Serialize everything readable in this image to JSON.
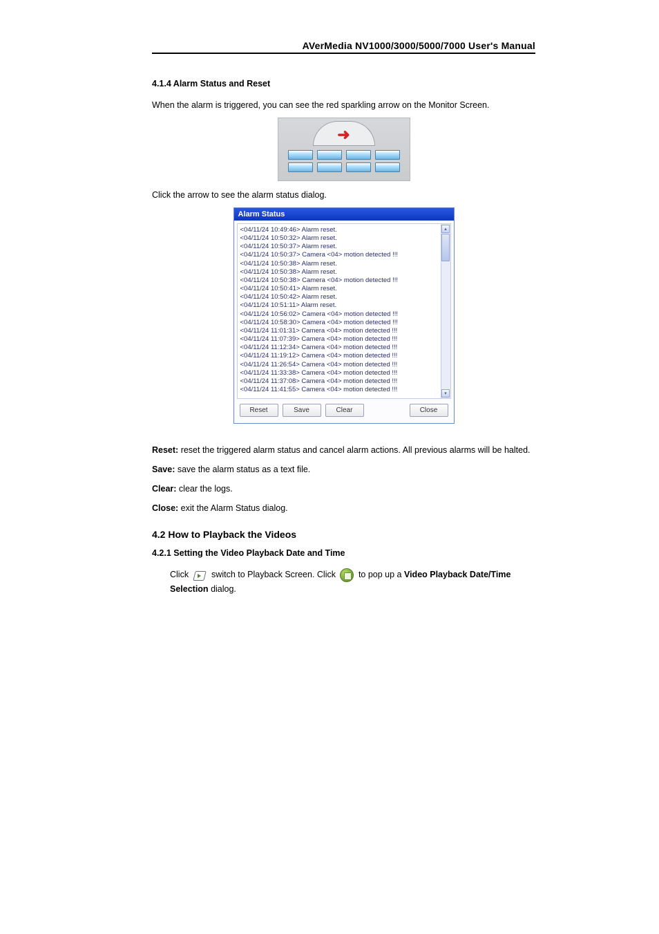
{
  "header": {
    "title": "AVerMedia NV1000/3000/5000/7000 User's Manual"
  },
  "section_414": {
    "heading": "4.1.4    Alarm Status and Reset",
    "intro": "When the alarm is triggered, you can see the red sparkling arrow on the Monitor Screen.",
    "click_arrow": "Click the arrow to see the alarm status dialog."
  },
  "dialog": {
    "title": "Alarm Status",
    "log_lines": [
      "<04/11/24 10:49:46> Alarm reset.",
      "<04/11/24 10:50:32> Alarm reset.",
      "<04/11/24 10:50:37> Alarm reset.",
      "<04/11/24 10:50:37> Camera <04> motion detected !!!",
      "<04/11/24 10:50:38> Alarm reset.",
      "<04/11/24 10:50:38> Alarm reset.",
      "<04/11/24 10:50:38> Camera <04> motion detected !!!",
      "<04/11/24 10:50:41> Alarm reset.",
      "<04/11/24 10:50:42> Alarm reset.",
      "<04/11/24 10:51:11> Alarm reset.",
      "<04/11/24 10:56:02> Camera <04> motion detected !!!",
      "<04/11/24 10:58:30> Camera <04> motion detected !!!",
      "<04/11/24 11:01:31> Camera <04> motion detected !!!",
      "<04/11/24 11:07:39> Camera <04> motion detected !!!",
      "<04/11/24 11:12:34> Camera <04> motion detected !!!",
      "<04/11/24 11:19:12> Camera <04> motion detected !!!",
      "<04/11/24 11:26:54> Camera <04> motion detected !!!",
      "<04/11/24 11:33:38> Camera <04> motion detected !!!",
      "<04/11/24 11:37:08> Camera <04> motion detected !!!",
      "<04/11/24 11:41:55> Camera <04> motion detected !!!"
    ],
    "buttons": {
      "reset": "Reset",
      "save": "Save",
      "clear": "Clear",
      "close": "Close"
    }
  },
  "definitions": {
    "reset_label": "Reset:",
    "reset_text": " reset the triggered alarm status and cancel alarm actions. All previous alarms will be halted.",
    "save_label": "Save:",
    "save_text": " save the alarm status as a text file.",
    "clear_label": "Clear:",
    "clear_text": " clear the logs.",
    "close_label": "Close:",
    "close_text": " exit the Alarm Status dialog."
  },
  "section_42": {
    "heading": "4.2    How to Playback the Videos"
  },
  "section_421": {
    "heading": "4.2.1    Setting the Video Playback Date and Time",
    "click_pre": "Click ",
    "click_mid": " switch to Playback Screen. Click ",
    "click_post1": " to pop up a ",
    "bold1": "Video Playback Date/Time Selection",
    "click_post2": " dialog."
  },
  "colors": {
    "title_bar_start": "#2a57e0",
    "title_bar_end": "#0b36c4",
    "log_text": "#2a2f6d",
    "arrow_red": "#d62222"
  }
}
